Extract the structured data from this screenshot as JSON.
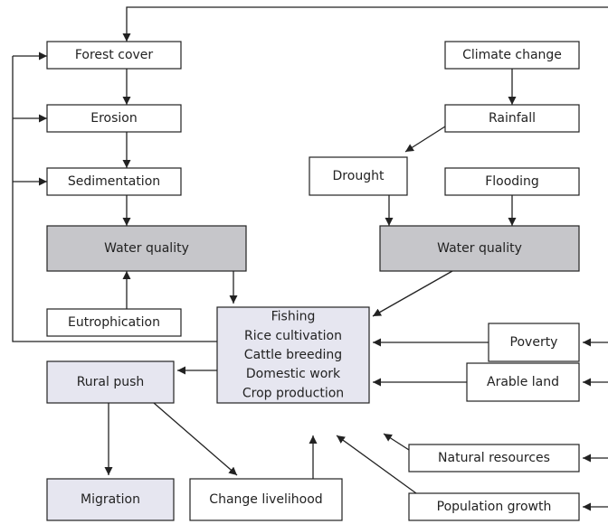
{
  "nodes": [
    {
      "label": "Forest cover"
    },
    {
      "label": "Erosion"
    },
    {
      "label": "Sedimentation"
    },
    {
      "label": "Water quality"
    },
    {
      "label": "Eutrophication"
    },
    {
      "lines": [
        "Fishing",
        "Rice cultivation",
        "Cattle breeding",
        "Domestic work",
        "Crop production"
      ]
    },
    {
      "label": "Climate change"
    },
    {
      "label": "Rainfall"
    },
    {
      "label": "Drought"
    },
    {
      "label": "Flooding"
    },
    {
      "label": "Water quality"
    },
    {
      "label": "Poverty"
    },
    {
      "label": "Arable land"
    },
    {
      "label": "Natural resources"
    },
    {
      "label": "Population growth"
    },
    {
      "label": "Rural push"
    },
    {
      "label": "Migration"
    },
    {
      "label": "Change livelihood"
    }
  ]
}
